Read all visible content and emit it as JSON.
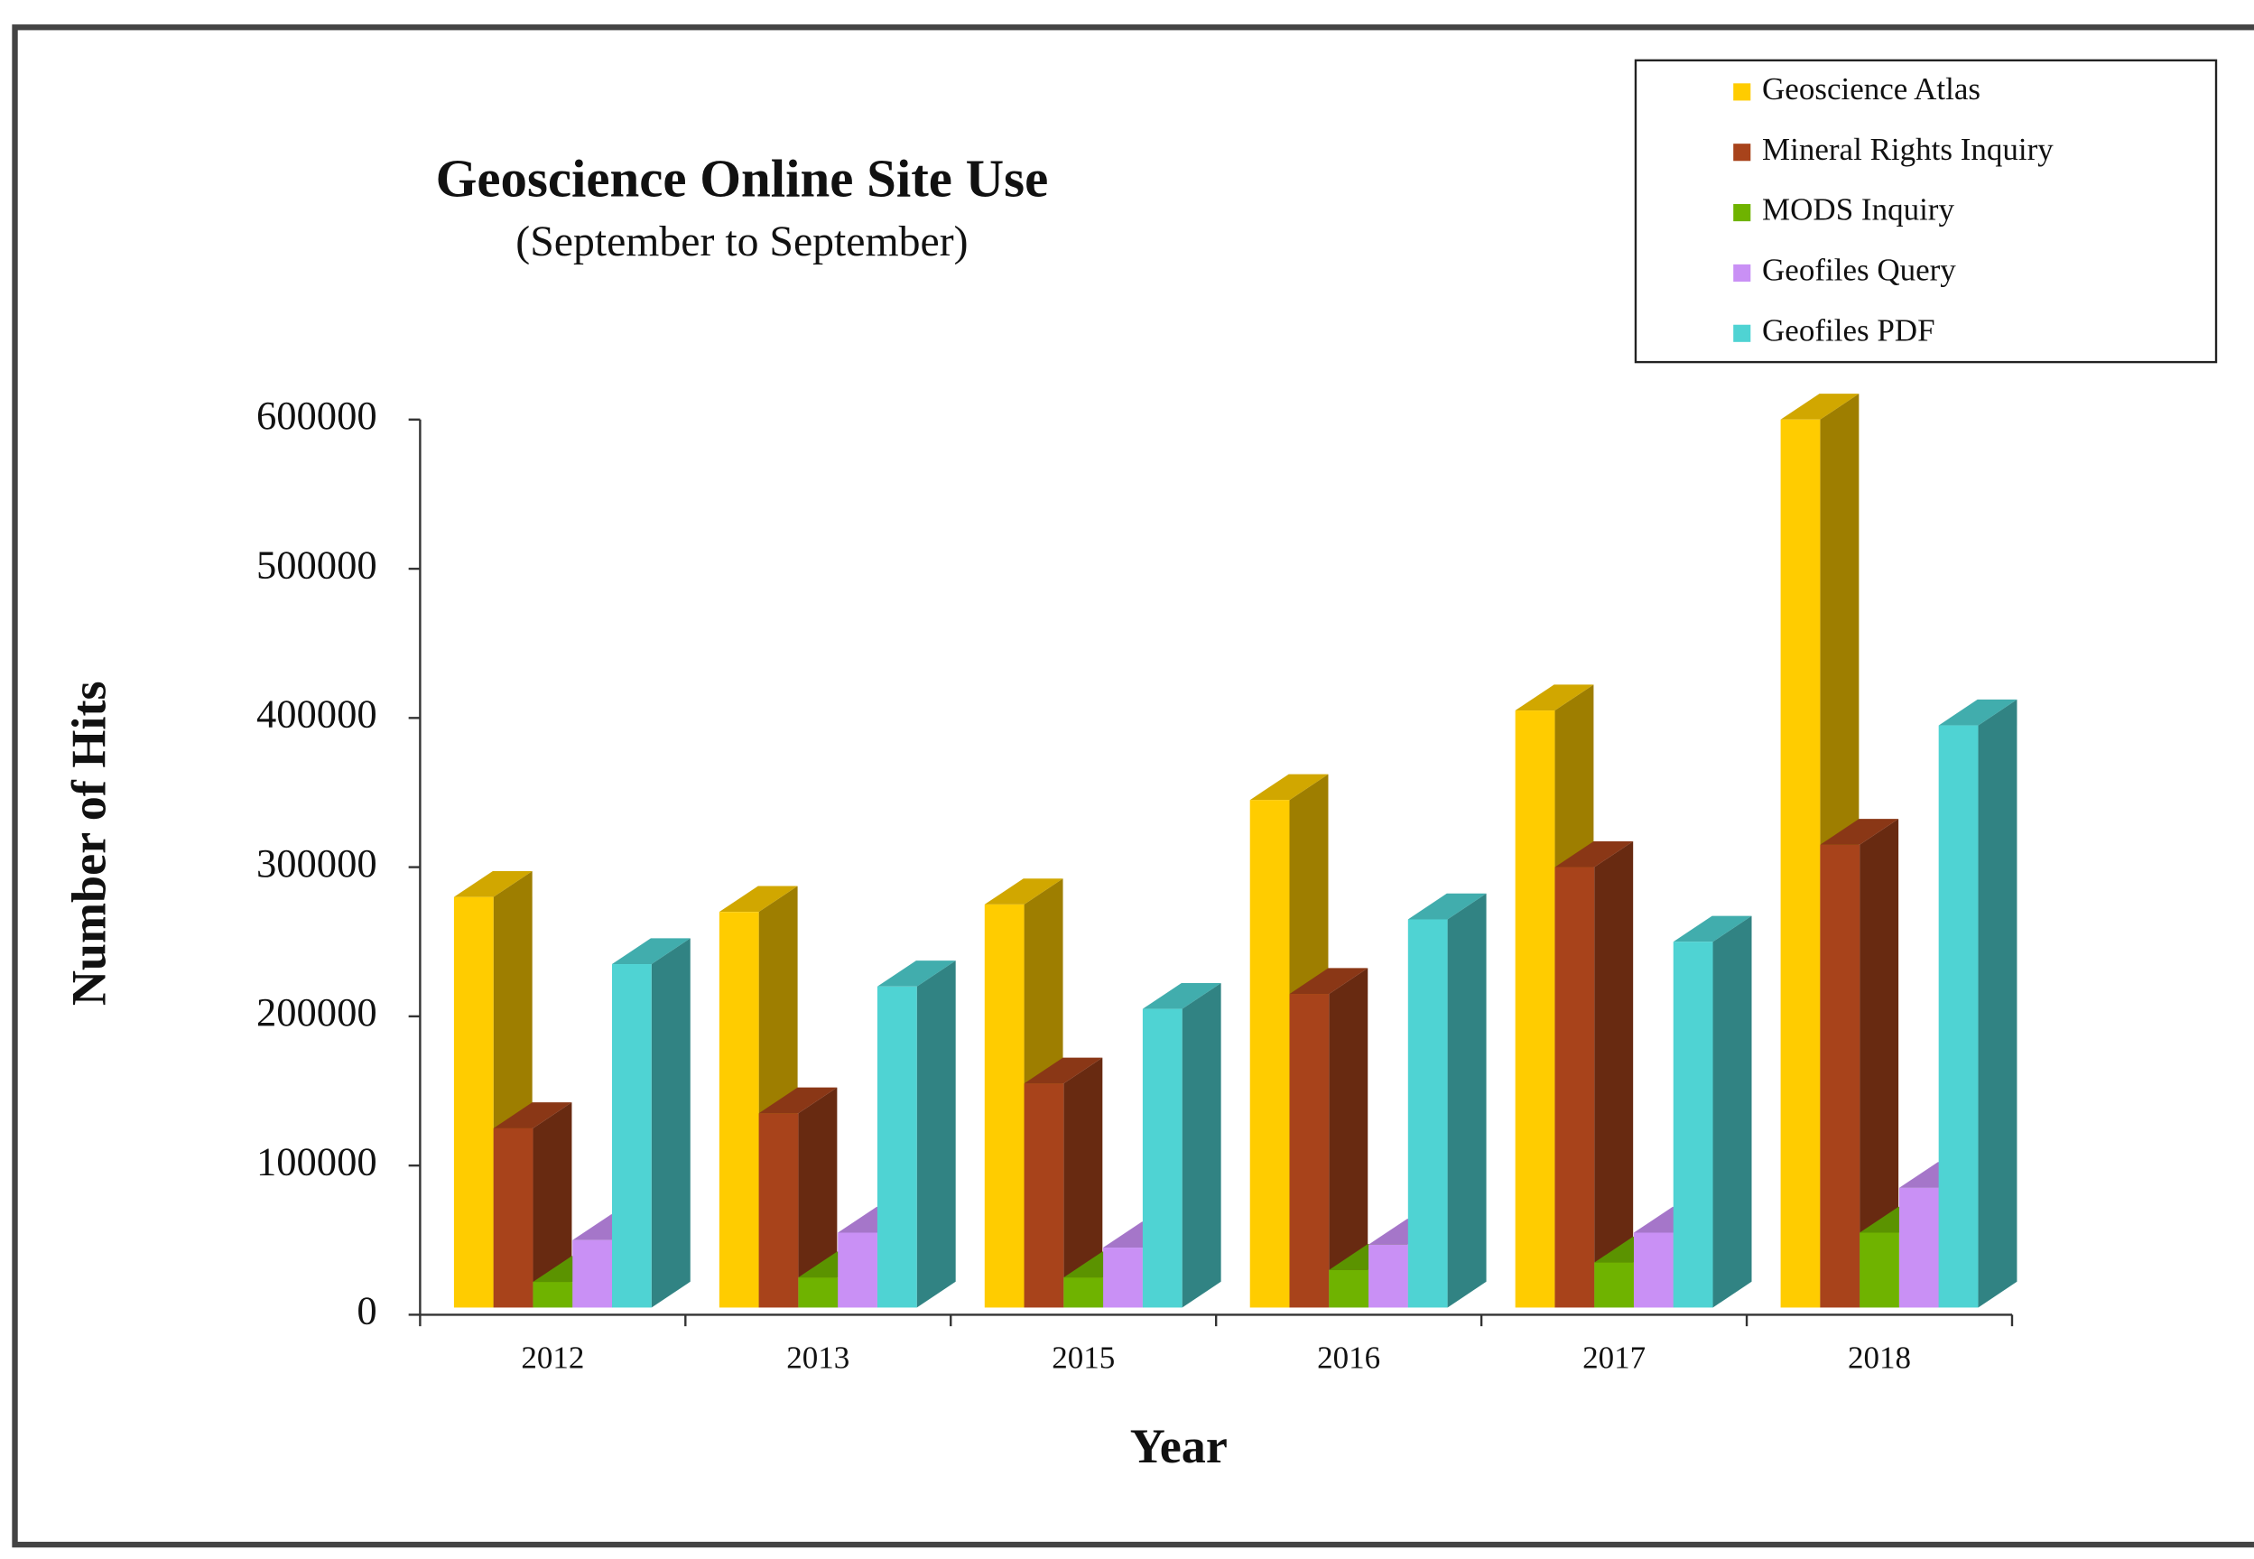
{
  "chart_data": {
    "type": "bar3d",
    "title": "Geoscience Online Site Use",
    "subtitle": "(September to September)",
    "x_label": "Year",
    "y_label": "Number of Hits",
    "categories": [
      "2012",
      "2013",
      "2015",
      "2016",
      "2017",
      "2018"
    ],
    "series": [
      {
        "name": "Geoscience Atlas",
        "color": "#ffcc00",
        "values": [
          280000,
          270000,
          275000,
          345000,
          405000,
          600000
        ]
      },
      {
        "name": "Mineral Rights Inquiry",
        "color": "#a8431b",
        "values": [
          125000,
          135000,
          155000,
          215000,
          300000,
          315000
        ]
      },
      {
        "name": "MODS Inquiry",
        "color": "#6fb300",
        "values": [
          22000,
          25000,
          25000,
          30000,
          35000,
          55000
        ]
      },
      {
        "name": "Geofiles Query",
        "color": "#c990f5",
        "values": [
          50000,
          55000,
          45000,
          47000,
          55000,
          85000
        ]
      },
      {
        "name": "Geofiles PDF",
        "color": "#4fd3d3",
        "values": [
          235000,
          220000,
          205000,
          265000,
          250000,
          395000
        ]
      }
    ],
    "ylim": [
      0,
      600000
    ],
    "yticks": [
      0,
      100000,
      200000,
      300000,
      400000,
      500000,
      600000
    ],
    "legend": "top-right"
  }
}
